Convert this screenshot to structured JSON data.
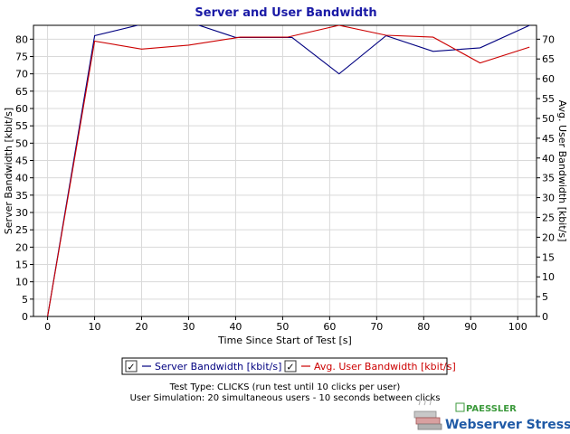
{
  "colors": {
    "title": "#1a1aa6",
    "series_server": "#000080",
    "series_user": "#cc0000",
    "grid": "#d9d9d9",
    "brand_blue": "#1f5aa6",
    "brand_green": "#3c9a3c"
  },
  "legend": {
    "checkbox_mark": "✓"
  },
  "info": {
    "line1": "Test Type: CLICKS (run test until 10 clicks per user)",
    "line2": "User Simulation: 20 simultaneous users - 10 seconds between clicks"
  },
  "brand": {
    "company": "PAESSLER",
    "product": "Webserver Stress Tool",
    "logo_icon": "server-rack-icon"
  },
  "chart_data": {
    "type": "line",
    "title": "Server and User Bandwidth",
    "xlabel": "Time Since Start of Test [s]",
    "ylabel": "Server Bandwidth [kbit/s]",
    "y2label": "Avg. User Bandwidth [kbit/s]",
    "xlim": [
      -3,
      104
    ],
    "ylim": [
      0,
      84
    ],
    "y2lim": [
      0,
      73.5
    ],
    "xticks": [
      0,
      10,
      20,
      30,
      40,
      50,
      60,
      70,
      80,
      90,
      100
    ],
    "yticks": [
      0,
      5,
      10,
      15,
      20,
      25,
      30,
      35,
      40,
      45,
      50,
      55,
      60,
      65,
      70,
      75,
      80
    ],
    "y2ticks": [
      0,
      5,
      10,
      15,
      20,
      25,
      30,
      35,
      40,
      45,
      50,
      55,
      60,
      65,
      70
    ],
    "grid": true,
    "legend_position": "bottom-center",
    "series": [
      {
        "name": "Server Bandwidth [kbit/s]",
        "axis": "left",
        "color": "#000080",
        "x": [
          0,
          10,
          20,
          25,
          30,
          40,
          52,
          62,
          72,
          82,
          92,
          103
        ],
        "y": [
          0,
          81,
          84.3,
          84.3,
          85,
          80.5,
          80.5,
          70,
          81,
          76.5,
          77.5,
          84.3
        ]
      },
      {
        "name": "Avg. User Bandwidth [kbit/s]",
        "axis": "right",
        "color": "#cc0000",
        "x": [
          0,
          10,
          20,
          30,
          41,
          51,
          62,
          72,
          82,
          92,
          102.5
        ],
        "y": [
          0,
          69.5,
          67.5,
          68.5,
          70.5,
          70.5,
          73.5,
          71,
          70.5,
          64,
          68
        ]
      }
    ]
  }
}
